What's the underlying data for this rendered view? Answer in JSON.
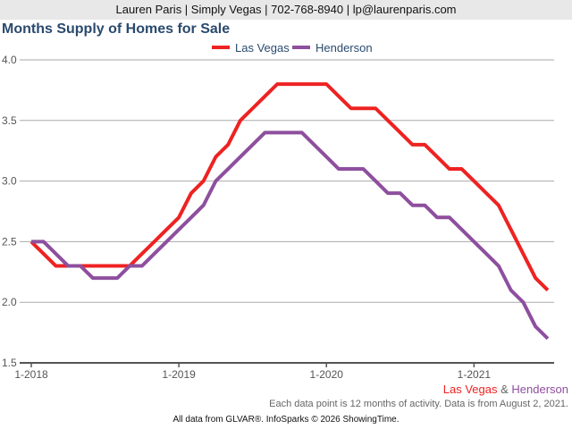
{
  "header": "Lauren Paris | Simply Vegas | 702-768-8940 | lp@laurenparis.com",
  "footer": {
    "sep": " & ",
    "note": "Each data point is 12 months of activity. Data is from August 2, 2021.",
    "source": "All data from GLVAR®. InfoSparks © 2026 ShowingTime."
  },
  "chart_data": {
    "type": "line",
    "title": "Months Supply of Homes for Sale",
    "xlabel": "",
    "ylabel": "",
    "ylim": [
      1.5,
      4.0
    ],
    "yticks": [
      "1.5",
      "2.0",
      "2.5",
      "3.0",
      "3.5",
      "4.0"
    ],
    "xticks": [
      {
        "label": "1-2018",
        "index": 0
      },
      {
        "label": "1-2019",
        "index": 12
      },
      {
        "label": "1-2020",
        "index": 24
      },
      {
        "label": "1-2021",
        "index": 36
      }
    ],
    "x_start": "1-2018",
    "x_end": "7-2021",
    "legend_position": "top-center",
    "grid": true,
    "series": [
      {
        "name": "Las Vegas",
        "color": "#ee2222",
        "values": [
          2.5,
          2.4,
          2.3,
          2.3,
          2.3,
          2.3,
          2.3,
          2.3,
          2.3,
          2.4,
          2.5,
          2.6,
          2.7,
          2.9,
          3.0,
          3.2,
          3.3,
          3.5,
          3.6,
          3.7,
          3.8,
          3.8,
          3.8,
          3.8,
          3.8,
          3.7,
          3.6,
          3.6,
          3.6,
          3.5,
          3.4,
          3.3,
          3.3,
          3.2,
          3.1,
          3.1,
          3.0,
          2.9,
          2.8,
          2.6,
          2.4,
          2.2,
          2.1
        ]
      },
      {
        "name": "Henderson",
        "color": "#8e4f9e",
        "values": [
          2.5,
          2.5,
          2.4,
          2.3,
          2.3,
          2.2,
          2.2,
          2.2,
          2.3,
          2.3,
          2.4,
          2.5,
          2.6,
          2.7,
          2.8,
          3.0,
          3.1,
          3.2,
          3.3,
          3.4,
          3.4,
          3.4,
          3.4,
          3.3,
          3.2,
          3.1,
          3.1,
          3.1,
          3.0,
          2.9,
          2.9,
          2.8,
          2.8,
          2.7,
          2.7,
          2.6,
          2.5,
          2.4,
          2.3,
          2.1,
          2.0,
          1.8,
          1.7
        ]
      }
    ]
  }
}
